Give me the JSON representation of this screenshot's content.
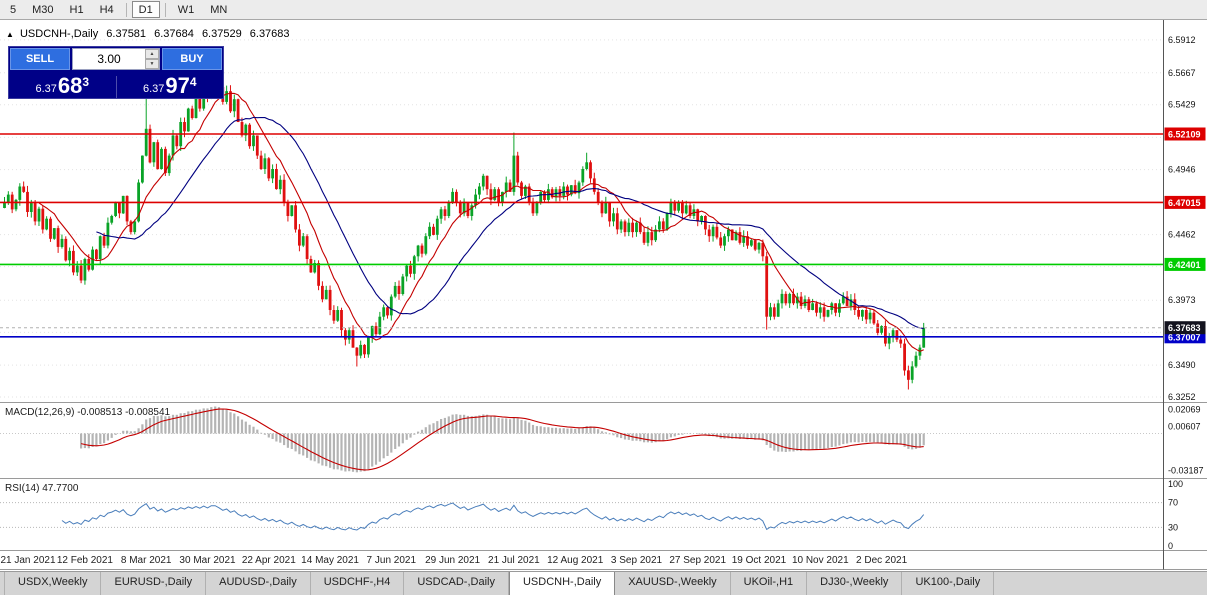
{
  "toolbar": {
    "timeframes": [
      "5",
      "M30",
      "H1",
      "H4",
      "D1",
      "W1",
      "MN"
    ],
    "active_index": 4
  },
  "symbol_bar": {
    "title": "USDCNH-,Daily",
    "open": "6.37581",
    "high": "6.37684",
    "low": "6.37529",
    "close": "6.37683"
  },
  "trade_panel": {
    "sell_label": "SELL",
    "buy_label": "BUY",
    "volume": "3.00",
    "sell_price_prefix": "6.37",
    "sell_price_main": "68",
    "sell_price_sup": "3",
    "buy_price_prefix": "6.37",
    "buy_price_main": "97",
    "buy_price_sup": "4"
  },
  "tabs": {
    "items": [
      "USDX,Weekly",
      "EURUSD-,Daily",
      "AUDUSD-,Daily",
      "USDCHF-,H4",
      "USDCAD-,Daily",
      "USDCNH-,Daily",
      "XAUUSD-,Weekly",
      "UKOil-,H1",
      "DJ30-,Weekly",
      "UK100-,Daily"
    ],
    "active_index": 5
  },
  "chart_data": {
    "type": "candlestick",
    "symbol": "USDCNH-",
    "timeframe": "Daily",
    "x_labels": [
      "21 Jan 2021",
      "12 Feb 2021",
      "8 Mar 2021",
      "30 Mar 2021",
      "22 Apr 2021",
      "14 May 2021",
      "7 Jun 2021",
      "29 Jun 2021",
      "21 Jul 2021",
      "12 Aug 2021",
      "3 Sep 2021",
      "27 Sep 2021",
      "19 Oct 2021",
      "10 Nov 2021",
      "2 Dec 2021"
    ],
    "first_label_index": 5,
    "label_step": 16,
    "closes": [
      6.47,
      6.476,
      6.465,
      6.472,
      6.482,
      6.478,
      6.463,
      6.47,
      6.456,
      6.4655,
      6.45,
      6.458,
      6.443,
      6.451,
      6.437,
      6.443,
      6.427,
      6.434,
      6.418,
      6.423,
      6.412,
      6.428,
      6.42,
      6.435,
      6.428,
      6.445,
      6.438,
      6.455,
      6.46,
      6.47,
      6.462,
      6.475,
      6.456,
      6.448,
      6.456,
      6.485,
      6.505,
      6.525,
      6.5,
      6.515,
      6.495,
      6.51,
      6.492,
      6.505,
      6.52,
      6.512,
      6.53,
      6.523,
      6.54,
      6.533,
      6.548,
      6.54,
      6.556,
      6.548,
      6.565,
      6.565,
      6.556,
      6.545,
      6.553,
      6.538,
      6.547,
      6.53,
      6.52,
      6.528,
      6.512,
      6.52,
      6.505,
      6.495,
      6.503,
      6.488,
      6.495,
      6.48,
      6.487,
      6.47,
      6.46,
      6.468,
      6.45,
      6.438,
      6.445,
      6.428,
      6.418,
      6.425,
      6.408,
      6.398,
      6.405,
      6.39,
      6.382,
      6.39,
      6.375,
      6.368,
      6.375,
      6.362,
      6.356,
      6.364,
      6.357,
      6.37,
      6.378,
      6.372,
      6.385,
      6.392,
      6.386,
      6.4,
      6.408,
      6.402,
      6.415,
      6.423,
      6.417,
      6.43,
      6.438,
      6.432,
      6.445,
      6.452,
      6.446,
      6.458,
      6.465,
      6.46,
      6.47,
      6.478,
      6.47,
      6.462,
      6.47,
      6.46,
      6.468,
      6.476,
      6.482,
      6.49,
      6.48,
      6.472,
      6.48,
      6.47,
      6.478,
      6.485,
      6.478,
      6.505,
      6.485,
      6.475,
      6.482,
      6.47,
      6.462,
      6.47,
      6.478,
      6.472,
      6.48,
      6.474,
      6.48,
      6.475,
      6.482,
      6.476,
      6.483,
      6.477,
      6.485,
      6.495,
      6.5,
      6.488,
      6.478,
      6.47,
      6.462,
      6.47,
      6.456,
      6.462,
      6.45,
      6.456,
      6.448,
      6.455,
      6.448,
      6.455,
      6.448,
      6.44,
      6.448,
      6.442,
      6.45,
      6.456,
      6.45,
      6.462,
      6.47,
      6.464,
      6.47,
      6.462,
      6.468,
      6.46,
      6.465,
      6.456,
      6.46,
      6.45,
      6.445,
      6.452,
      6.444,
      6.438,
      6.445,
      6.45,
      6.442,
      6.448,
      6.44,
      6.445,
      6.438,
      6.442,
      6.435,
      6.44,
      6.43,
      6.385,
      6.392,
      6.385,
      6.395,
      6.402,
      6.395,
      6.402,
      6.395,
      6.4,
      6.393,
      6.398,
      6.39,
      6.395,
      6.388,
      6.392,
      6.385,
      6.39,
      6.395,
      6.388,
      6.395,
      6.4,
      6.393,
      6.398,
      6.39,
      6.385,
      6.39,
      6.383,
      6.388,
      6.38,
      6.373,
      6.378,
      6.365,
      6.37,
      6.375,
      6.368,
      6.365,
      6.345,
      6.338,
      6.348,
      6.356,
      6.362,
      6.3768
    ],
    "wick_overrides": {
      "37": [
        0.04,
        0
      ],
      "55": [
        0.012,
        0
      ],
      "92": [
        0,
        0.004
      ],
      "133": [
        0.016,
        0
      ],
      "152": [
        0.004,
        0
      ],
      "199": [
        0,
        0.009
      ],
      "236": [
        0,
        0.005
      ]
    },
    "price_axis": {
      "min": 6.3215,
      "max": 6.606,
      "ticks": [
        "6.5912",
        "6.5667",
        "6.5429",
        "6.5186",
        "6.4946",
        "6.4701",
        "6.4462",
        "6.4223",
        "6.3973",
        "6.3734",
        "6.3490",
        "6.3252"
      ]
    },
    "levels": [
      {
        "price": 6.52109,
        "label": "6.52109",
        "color": "#dd0000"
      },
      {
        "price": 6.47015,
        "label": "6.47015",
        "color": "#dd0000"
      },
      {
        "price": 6.42401,
        "label": "6.42401",
        "color": "#00cc00"
      },
      {
        "price": 6.37007,
        "label": "6.37007",
        "color": "#0000c8"
      }
    ],
    "current_price": {
      "price": 6.37683,
      "label": "6.37683",
      "badge_color": "#13131f"
    },
    "colors": {
      "up": "#0aa327",
      "down": "#e01010",
      "ma_fast": "#c40000",
      "ma_slow": "#000080",
      "macd_hist": "#b4b4b4",
      "macd_signal": "#c40000",
      "rsi": "#4a7ebb",
      "grid": "#e3e3e3"
    },
    "macd": {
      "params": "MACD(12,26,9)",
      "values_text": "-0.008513 -0.008541",
      "axis": [
        {
          "text": "0.02069",
          "value": 0.02069
        },
        {
          "text": "0.00607",
          "value": 0.00607
        },
        {
          "text": "-0.03187",
          "value": -0.03187
        }
      ],
      "domain": [
        -0.0385,
        0.0255
      ]
    },
    "rsi": {
      "params": "RSI(14)",
      "value_text": "47.7700",
      "axis": [
        {
          "text": "100",
          "value": 100
        },
        {
          "text": "70",
          "value": 70
        },
        {
          "text": "30",
          "value": 30
        },
        {
          "text": "0",
          "value": 0
        }
      ],
      "levels": [
        70,
        30
      ]
    }
  }
}
